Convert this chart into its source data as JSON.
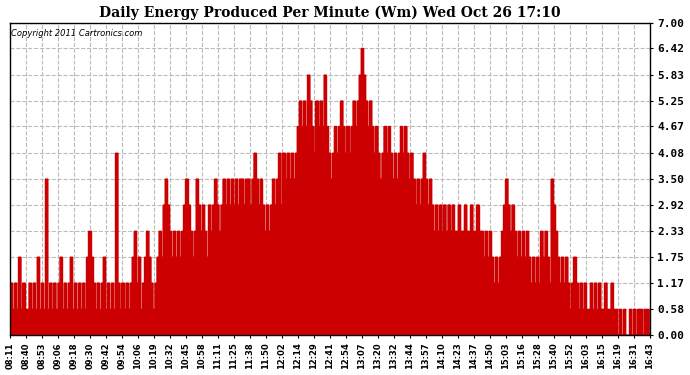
{
  "title": "Daily Energy Produced Per Minute (Wm) Wed Oct 26 17:10",
  "copyright": "Copyright 2011 Cartronics.com",
  "yticks": [
    0.0,
    0.58,
    1.17,
    1.75,
    2.33,
    2.92,
    3.5,
    4.08,
    4.67,
    5.25,
    5.83,
    6.42,
    7.0
  ],
  "ylim": [
    0.0,
    7.0
  ],
  "line_color": "#cc0000",
  "background_color": "#ffffff",
  "grid_color": "#bbbbbb",
  "xtick_labels": [
    "08:11",
    "08:40",
    "08:53",
    "09:06",
    "09:18",
    "09:30",
    "09:42",
    "09:54",
    "10:06",
    "10:19",
    "10:32",
    "10:45",
    "10:58",
    "11:11",
    "11:25",
    "11:38",
    "11:50",
    "12:02",
    "12:14",
    "12:29",
    "12:41",
    "12:54",
    "13:07",
    "13:20",
    "13:32",
    "13:44",
    "13:57",
    "14:10",
    "14:23",
    "14:37",
    "14:50",
    "15:03",
    "15:16",
    "15:28",
    "15:40",
    "15:52",
    "16:03",
    "16:15",
    "16:19",
    "16:31",
    "16:43"
  ],
  "values": [
    1.17,
    0.58,
    1.17,
    0.58,
    1.75,
    0.58,
    1.17,
    0.58,
    0.58,
    1.17,
    0.58,
    1.17,
    0.58,
    1.75,
    0.58,
    1.17,
    0.58,
    3.5,
    0.58,
    1.17,
    0.58,
    1.17,
    0.58,
    1.17,
    1.75,
    0.58,
    1.17,
    0.58,
    1.17,
    1.75,
    0.58,
    1.17,
    0.58,
    1.17,
    0.58,
    1.17,
    0.58,
    1.75,
    2.33,
    1.75,
    1.17,
    0.58,
    1.17,
    0.58,
    1.17,
    1.75,
    0.58,
    1.17,
    0.58,
    1.17,
    0.58,
    4.08,
    1.17,
    0.58,
    1.17,
    0.58,
    1.17,
    0.58,
    1.17,
    1.75,
    2.33,
    1.17,
    1.75,
    0.58,
    1.17,
    1.75,
    2.33,
    1.75,
    1.17,
    0.58,
    1.17,
    1.75,
    2.33,
    1.75,
    2.92,
    3.5,
    2.92,
    2.33,
    1.75,
    2.33,
    1.75,
    2.33,
    1.75,
    2.33,
    2.92,
    3.5,
    2.92,
    2.33,
    1.75,
    2.33,
    3.5,
    2.92,
    2.33,
    2.92,
    2.33,
    1.75,
    2.92,
    2.33,
    2.92,
    3.5,
    2.92,
    2.33,
    2.92,
    3.5,
    2.92,
    3.5,
    2.92,
    3.5,
    2.92,
    3.5,
    2.92,
    3.5,
    3.5,
    2.92,
    3.5,
    3.5,
    2.92,
    3.5,
    4.08,
    3.5,
    2.92,
    3.5,
    2.92,
    2.33,
    2.92,
    2.33,
    2.92,
    3.5,
    2.92,
    3.5,
    4.08,
    2.92,
    4.08,
    3.5,
    4.08,
    3.5,
    4.08,
    3.5,
    4.08,
    4.67,
    5.25,
    4.67,
    5.25,
    4.67,
    5.83,
    5.25,
    4.67,
    4.08,
    5.25,
    4.67,
    5.25,
    4.67,
    5.83,
    4.67,
    4.08,
    3.5,
    4.08,
    4.67,
    4.08,
    4.67,
    5.25,
    4.67,
    4.08,
    4.67,
    4.08,
    4.67,
    5.25,
    4.67,
    5.25,
    5.83,
    6.42,
    5.83,
    5.25,
    4.67,
    5.25,
    4.67,
    4.08,
    4.67,
    4.08,
    3.5,
    4.08,
    4.67,
    4.08,
    4.67,
    4.08,
    3.5,
    4.08,
    3.5,
    4.08,
    4.67,
    4.08,
    4.67,
    4.08,
    3.5,
    4.08,
    3.5,
    2.92,
    3.5,
    2.92,
    3.5,
    4.08,
    3.5,
    2.92,
    3.5,
    2.92,
    2.33,
    2.92,
    2.33,
    2.92,
    2.33,
    2.92,
    2.33,
    2.92,
    2.33,
    2.92,
    2.33,
    2.33,
    2.92,
    2.33,
    2.33,
    2.92,
    2.33,
    2.33,
    2.92,
    2.33,
    2.33,
    2.92,
    2.33,
    2.33,
    1.75,
    2.33,
    1.75,
    2.33,
    1.75,
    1.17,
    1.75,
    1.17,
    1.75,
    2.33,
    2.92,
    3.5,
    2.92,
    2.33,
    2.92,
    2.33,
    1.75,
    2.33,
    1.75,
    2.33,
    1.75,
    2.33,
    1.75,
    1.17,
    1.75,
    1.17,
    1.75,
    1.17,
    2.33,
    1.75,
    2.33,
    1.75,
    1.17,
    3.5,
    2.92,
    2.33,
    1.75,
    1.17,
    1.75,
    1.17,
    1.75,
    1.17,
    0.58,
    1.17,
    1.75,
    1.17,
    0.58,
    1.17,
    0.58,
    1.17,
    0.58,
    0.58,
    1.17,
    0.58,
    1.17,
    0.58,
    1.17,
    0.58,
    0.58,
    1.17,
    0.58,
    0.58,
    1.17,
    0.58,
    0.58,
    0.0,
    0.58,
    0.0,
    0.58,
    0.0,
    0.0,
    0.58,
    0.0,
    0.58,
    0.0,
    0.58,
    0.58,
    0.0,
    0.58,
    0.58,
    0.0,
    0.58
  ]
}
